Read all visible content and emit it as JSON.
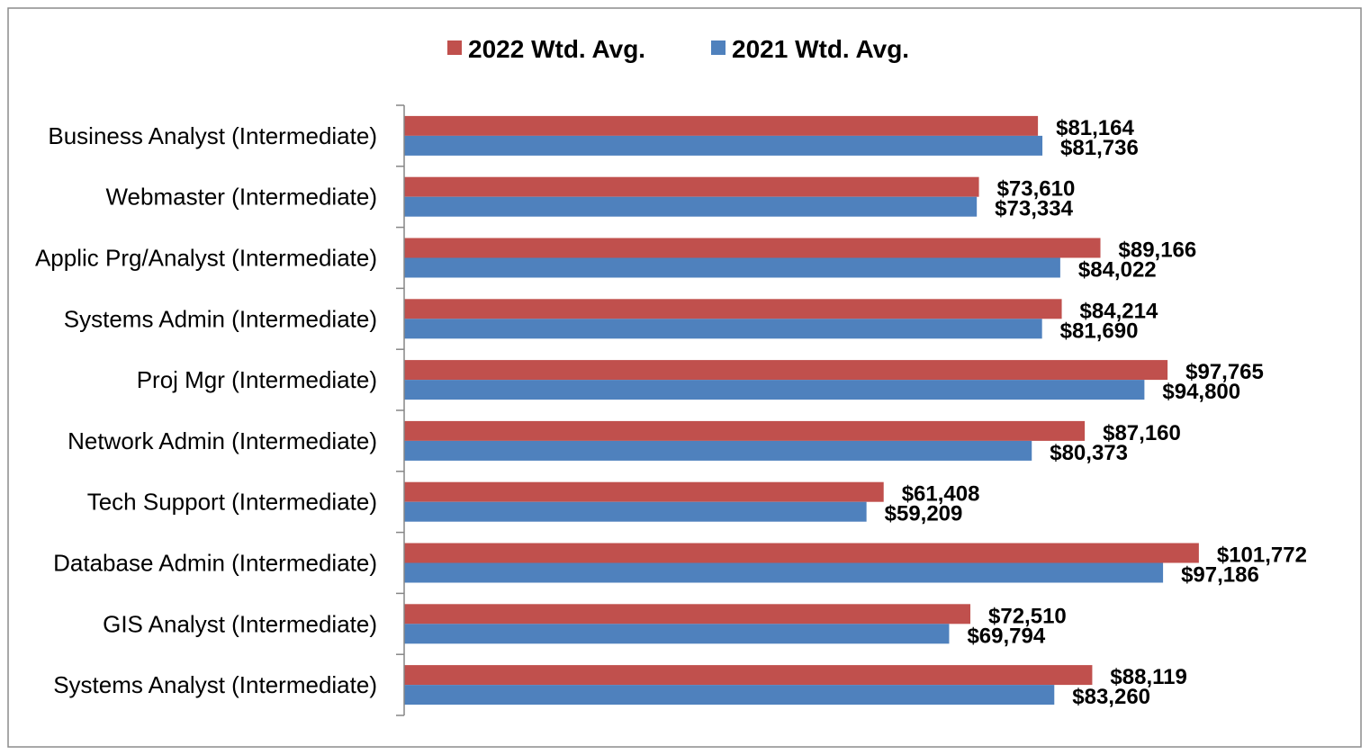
{
  "chart_data": {
    "type": "bar",
    "orientation": "horizontal",
    "categories": [
      "Business Analyst (Intermediate)",
      "Webmaster (Intermediate)",
      "Applic Prg/Analyst (Intermediate)",
      "Systems Admin (Intermediate)",
      "Proj Mgr (Intermediate)",
      "Network Admin (Intermediate)",
      "Tech Support (Intermediate)",
      "Database Admin (Intermediate)",
      "GIS Analyst (Intermediate)",
      "Systems Analyst (Intermediate)"
    ],
    "series": [
      {
        "name": "2022 Wtd. Avg.",
        "color": "#C0504D",
        "values": [
          81164,
          73610,
          89166,
          84214,
          97765,
          87160,
          61408,
          101772,
          72510,
          88119
        ],
        "labels": [
          "$81,164",
          "$73,610",
          "$89,166",
          "$84,214",
          "$97,765",
          "$87,160",
          "$61,408",
          "$101,772",
          "$72,510",
          "$88,119"
        ]
      },
      {
        "name": "2021 Wtd. Avg.",
        "color": "#4F81BD",
        "values": [
          81736,
          73334,
          84022,
          81690,
          94800,
          80373,
          59209,
          97186,
          69794,
          83260
        ],
        "labels": [
          "$81,736",
          "$73,334",
          "$84,022",
          "$81,690",
          "$94,800",
          "$80,373",
          "$59,209",
          "$97,186",
          "$69,794",
          "$83,260"
        ]
      }
    ],
    "title": "",
    "xlabel": "",
    "ylabel": "",
    "xlim": [
      0,
      120000
    ],
    "grid": false,
    "legend": "top-center"
  }
}
